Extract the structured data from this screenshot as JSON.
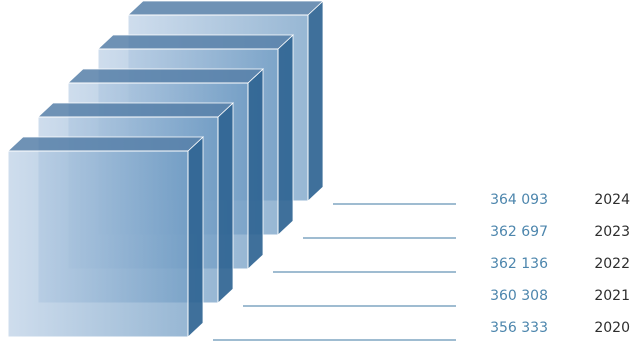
{
  "chart_data": {
    "type": "bar",
    "title": "",
    "xlabel": "",
    "ylabel": "",
    "categories": [
      "2024",
      "2023",
      "2022",
      "2021",
      "2020"
    ],
    "values": [
      364093,
      362697,
      362136,
      360308,
      356333
    ],
    "value_labels": [
      "364 093",
      "362 697",
      "362 136",
      "360 308",
      "356 333"
    ],
    "colors": {
      "value_text": "#4d86ad",
      "year_text": "#2e2e2e",
      "leader_line": "#3f78a3",
      "front_face_front": "#bcd0e6",
      "front_face_back": "#6f9bc3",
      "side_face": "#2f6493",
      "top_face": "#567fa8"
    }
  }
}
